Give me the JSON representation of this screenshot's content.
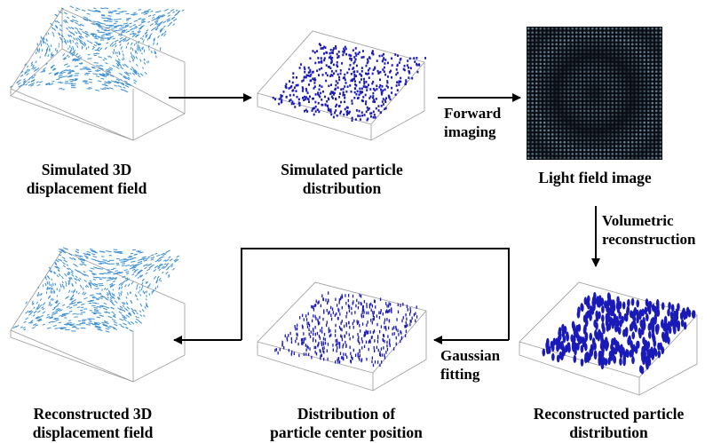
{
  "panels": {
    "sim_field": {
      "caption": [
        "Simulated 3D",
        "displacement field"
      ]
    },
    "sim_particle": {
      "caption": [
        "Simulated particle",
        "distribution"
      ]
    },
    "lf_image": {
      "caption": [
        "Light field image"
      ]
    },
    "recon_particle": {
      "caption": [
        "Reconstructed particle",
        "distribution"
      ]
    },
    "center_dist": {
      "caption": [
        "Distribution of",
        "particle center position"
      ]
    },
    "recon_field": {
      "caption": [
        "Reconstructed 3D",
        "displacement field"
      ]
    }
  },
  "steps": {
    "forward": [
      "Forward",
      "imaging"
    ],
    "volumetric": [
      "Volumetric",
      "reconstruction"
    ],
    "gaussian": [
      "Gaussian",
      "fitting"
    ]
  },
  "colors": {
    "vector_field": "#3b8fd6",
    "particle": "#1a1ab8",
    "box_edge": "#9a9a9a",
    "lf_background": "#0a0e14",
    "lf_grid": "#8fb0c8",
    "arrow": "#000000"
  }
}
